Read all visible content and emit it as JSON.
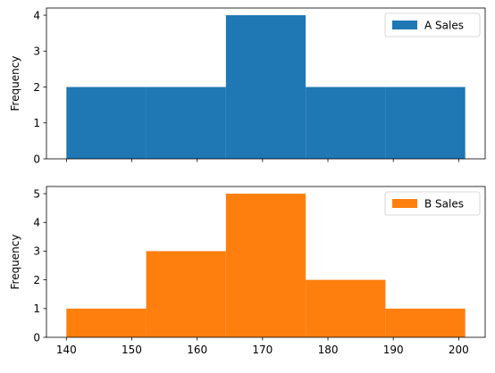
{
  "chart_data": [
    {
      "type": "bar",
      "subtype": "histogram",
      "series": [
        {
          "name": "A Sales",
          "color": "#1f77b4",
          "bins": [
            {
              "x0": 140,
              "x1": 152.2,
              "count": 2
            },
            {
              "x0": 152.2,
              "x1": 164.4,
              "count": 2
            },
            {
              "x0": 164.4,
              "x1": 176.6,
              "count": 4
            },
            {
              "x0": 176.6,
              "x1": 188.8,
              "count": 2
            },
            {
              "x0": 188.8,
              "x1": 201,
              "count": 2
            }
          ]
        }
      ],
      "ylabel": "Frequency",
      "xlabel": "",
      "ylim": [
        0,
        4.2
      ],
      "yticks": [
        "0",
        "1",
        "2",
        "3",
        "4"
      ],
      "xlim": [
        136.95,
        204.05
      ],
      "xticks": [
        140,
        150,
        160,
        170,
        180,
        190,
        200
      ],
      "show_x_tick_labels": false,
      "legend_position": "top-right",
      "grid": false
    },
    {
      "type": "bar",
      "subtype": "histogram",
      "series": [
        {
          "name": "B Sales",
          "color": "#ff7f0e",
          "bins": [
            {
              "x0": 140,
              "x1": 152.2,
              "count": 1
            },
            {
              "x0": 152.2,
              "x1": 164.4,
              "count": 3
            },
            {
              "x0": 164.4,
              "x1": 176.6,
              "count": 5
            },
            {
              "x0": 176.6,
              "x1": 188.8,
              "count": 2
            },
            {
              "x0": 188.8,
              "x1": 201,
              "count": 1
            }
          ]
        }
      ],
      "ylabel": "Frequency",
      "xlabel": "",
      "ylim": [
        0,
        5.25
      ],
      "yticks": [
        "0",
        "1",
        "2",
        "3",
        "4",
        "5"
      ],
      "xlim": [
        136.95,
        204.05
      ],
      "xticks": [
        140,
        150,
        160,
        170,
        180,
        190,
        200
      ],
      "xtick_labels": [
        "140",
        "150",
        "160",
        "170",
        "180",
        "190",
        "200"
      ],
      "show_x_tick_labels": true,
      "legend_position": "top-right",
      "grid": false
    }
  ]
}
